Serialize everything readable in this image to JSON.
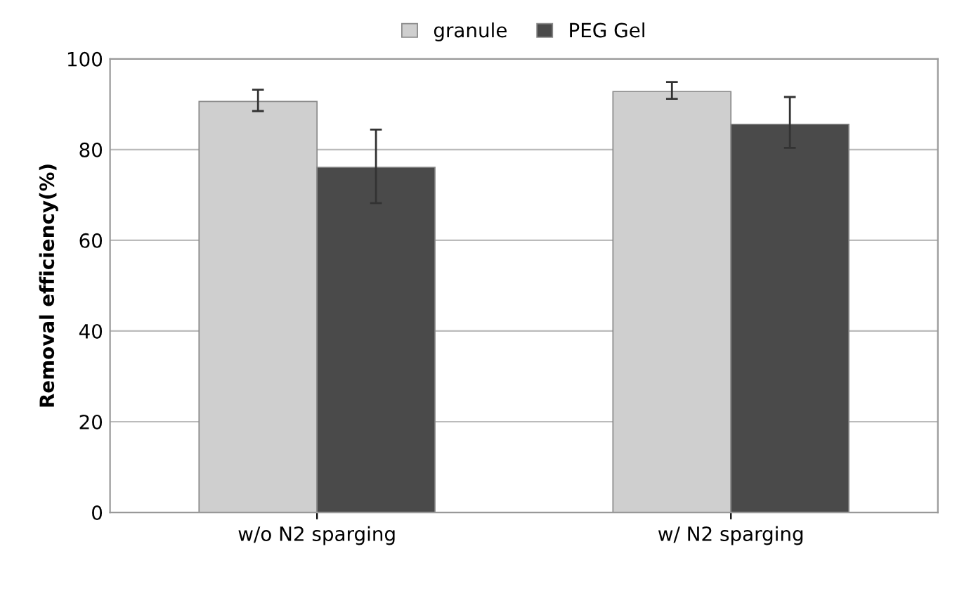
{
  "chart_data": {
    "type": "bar",
    "ylabel": "Removal efficiency(%)",
    "categories": [
      "w/o N2 sparging",
      "w/ N2 sparging"
    ],
    "series": [
      {
        "name": "granule",
        "color": "#cfcfcf",
        "values": [
          90.6,
          92.8
        ],
        "errors": [
          [
            88.5,
            93.2
          ],
          [
            91.2,
            94.9
          ]
        ]
      },
      {
        "name": "PEG Gel",
        "color": "#4a4a4a",
        "values": [
          76.1,
          85.6
        ],
        "errors": [
          [
            68.2,
            84.4
          ],
          [
            80.4,
            91.6
          ]
        ]
      }
    ],
    "ylim": [
      0,
      100
    ],
    "yticks": [
      0,
      20,
      40,
      60,
      80,
      100
    ],
    "grid": "y",
    "legend": "top"
  }
}
